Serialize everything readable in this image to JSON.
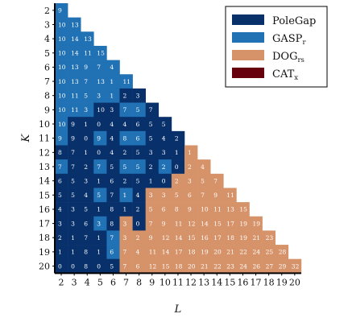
{
  "chart_data": {
    "type": "heatmap",
    "title": "",
    "xlabel": "L",
    "ylabel": "K",
    "x_range": [
      2,
      20
    ],
    "y_range": [
      2,
      20
    ],
    "x_ticks": [
      "2",
      "3",
      "4",
      "5",
      "6",
      "7",
      "8",
      "9",
      "10",
      "11",
      "12",
      "13",
      "14",
      "15",
      "16",
      "17",
      "18",
      "19",
      "20"
    ],
    "y_ticks": [
      "2",
      "3",
      "4",
      "5",
      "6",
      "7",
      "8",
      "9",
      "10",
      "11",
      "12",
      "13",
      "14",
      "15",
      "16",
      "17",
      "18",
      "19",
      "20"
    ],
    "legend_placement": "top-right",
    "legend": [
      {
        "key": "PoleGap",
        "label": "PoleGap",
        "sub": "",
        "color": "#08306b"
      },
      {
        "key": "GASP",
        "label": "GASP",
        "sub": "r",
        "color": "#2171b5"
      },
      {
        "key": "DOG",
        "label": "DOG",
        "sub": "rs",
        "color": "#d6936a"
      },
      {
        "key": "CAT",
        "label": "CAT",
        "sub": "x",
        "color": "#67000d"
      }
    ],
    "colors": {
      "P": "#08306b",
      "G": "#2171b5",
      "D": "#d6936a",
      "C": "#67000d"
    },
    "rows": [
      {
        "K": 2,
        "values": [
          "9"
        ],
        "winners": [
          "G"
        ]
      },
      {
        "K": 3,
        "values": [
          "10",
          "13"
        ],
        "winners": [
          "G",
          "G"
        ]
      },
      {
        "K": 4,
        "values": [
          "10",
          "14",
          "13"
        ],
        "winners": [
          "G",
          "G",
          "G"
        ]
      },
      {
        "K": 5,
        "values": [
          "10",
          "14",
          "11",
          "15"
        ],
        "winners": [
          "G",
          "G",
          "G",
          "G"
        ]
      },
      {
        "K": 6,
        "values": [
          "10",
          "13",
          "9",
          "7",
          "4"
        ],
        "winners": [
          "G",
          "G",
          "G",
          "G",
          "G"
        ]
      },
      {
        "K": 7,
        "values": [
          "10",
          "13",
          "7",
          "13",
          "1",
          "11"
        ],
        "winners": [
          "G",
          "G",
          "G",
          "G",
          "G",
          "G"
        ]
      },
      {
        "K": 8,
        "values": [
          "10",
          "11",
          "5",
          "3",
          "1",
          "2",
          "3"
        ],
        "winners": [
          "G",
          "G",
          "G",
          "G",
          "G",
          "P",
          "P"
        ]
      },
      {
        "K": 9,
        "values": [
          "10",
          "11",
          "3",
          "10",
          "3",
          "7",
          "5",
          "7"
        ],
        "winners": [
          "G",
          "G",
          "G",
          "P",
          "P",
          "G",
          "G",
          "P"
        ]
      },
      {
        "K": 10,
        "values": [
          "10",
          "9",
          "1",
          "0",
          "4",
          "4",
          "6",
          "5",
          "5"
        ],
        "winners": [
          "G",
          "P",
          "P",
          "P",
          "P",
          "P",
          "P",
          "P",
          "P"
        ]
      },
      {
        "K": 11,
        "values": [
          "9",
          "9",
          "0",
          "9",
          "4",
          "8",
          "6",
          "5",
          "4",
          "2"
        ],
        "winners": [
          "G",
          "P",
          "P",
          "G",
          "P",
          "G",
          "G",
          "P",
          "P",
          "P"
        ]
      },
      {
        "K": 12,
        "values": [
          "8",
          "7",
          "1",
          "0",
          "4",
          "2",
          "5",
          "3",
          "3",
          "1",
          "1"
        ],
        "winners": [
          "P",
          "P",
          "P",
          "P",
          "P",
          "P",
          "P",
          "P",
          "P",
          "P",
          "D"
        ]
      },
      {
        "K": 13,
        "values": [
          "7",
          "7",
          "2",
          "7",
          "5",
          "5",
          "5",
          "2",
          "2",
          "0",
          "2",
          "4"
        ],
        "winners": [
          "G",
          "P",
          "P",
          "G",
          "P",
          "G",
          "G",
          "P",
          "G",
          "P",
          "D",
          "D"
        ]
      },
      {
        "K": 14,
        "values": [
          "6",
          "5",
          "3",
          "1",
          "6",
          "2",
          "5",
          "1",
          "0",
          "2",
          "3",
          "5",
          "7"
        ],
        "winners": [
          "P",
          "P",
          "P",
          "P",
          "P",
          "P",
          "P",
          "P",
          "P",
          "D",
          "D",
          "D",
          "D"
        ]
      },
      {
        "K": 15,
        "values": [
          "5",
          "5",
          "4",
          "5",
          "7",
          "1",
          "4",
          "3",
          "3",
          "5",
          "6",
          "7",
          "9",
          "11"
        ],
        "winners": [
          "P",
          "P",
          "P",
          "G",
          "P",
          "G",
          "P",
          "D",
          "D",
          "D",
          "D",
          "D",
          "D",
          "D"
        ]
      },
      {
        "K": 16,
        "values": [
          "4",
          "3",
          "5",
          "1",
          "8",
          "1",
          "2",
          "5",
          "6",
          "8",
          "9",
          "10",
          "11",
          "13",
          "15"
        ],
        "winners": [
          "P",
          "P",
          "P",
          "P",
          "P",
          "P",
          "P",
          "D",
          "D",
          "D",
          "D",
          "D",
          "D",
          "D",
          "D"
        ]
      },
      {
        "K": 17,
        "values": [
          "3",
          "3",
          "6",
          "3",
          "8",
          "3",
          "0",
          "7",
          "9",
          "11",
          "12",
          "14",
          "15",
          "17",
          "19",
          "19"
        ],
        "winners": [
          "P",
          "P",
          "P",
          "G",
          "P",
          "D",
          "P",
          "D",
          "D",
          "D",
          "D",
          "D",
          "D",
          "D",
          "D",
          "D"
        ]
      },
      {
        "K": 18,
        "values": [
          "2",
          "1",
          "7",
          "1",
          "7",
          "3",
          "2",
          "9",
          "12",
          "14",
          "15",
          "16",
          "17",
          "18",
          "19",
          "21",
          "23"
        ],
        "winners": [
          "P",
          "P",
          "P",
          "P",
          "G",
          "D",
          "D",
          "D",
          "D",
          "D",
          "D",
          "D",
          "D",
          "D",
          "D",
          "D",
          "D"
        ]
      },
      {
        "K": 19,
        "values": [
          "1",
          "1",
          "8",
          "1",
          "6",
          "7",
          "4",
          "11",
          "14",
          "17",
          "18",
          "19",
          "20",
          "21",
          "22",
          "24",
          "25",
          "28"
        ],
        "winners": [
          "P",
          "P",
          "P",
          "P",
          "G",
          "D",
          "D",
          "D",
          "D",
          "D",
          "D",
          "D",
          "D",
          "D",
          "D",
          "D",
          "D",
          "D"
        ]
      },
      {
        "K": 20,
        "values": [
          "0",
          "0",
          "8",
          "0",
          "5",
          "7",
          "6",
          "12",
          "15",
          "18",
          "20",
          "21",
          "22",
          "23",
          "24",
          "26",
          "27",
          "29",
          "32"
        ],
        "winners": [
          "P",
          "P",
          "P",
          "P",
          "P",
          "D",
          "D",
          "D",
          "D",
          "D",
          "D",
          "D",
          "D",
          "D",
          "D",
          "D",
          "D",
          "D",
          "D"
        ]
      }
    ]
  }
}
